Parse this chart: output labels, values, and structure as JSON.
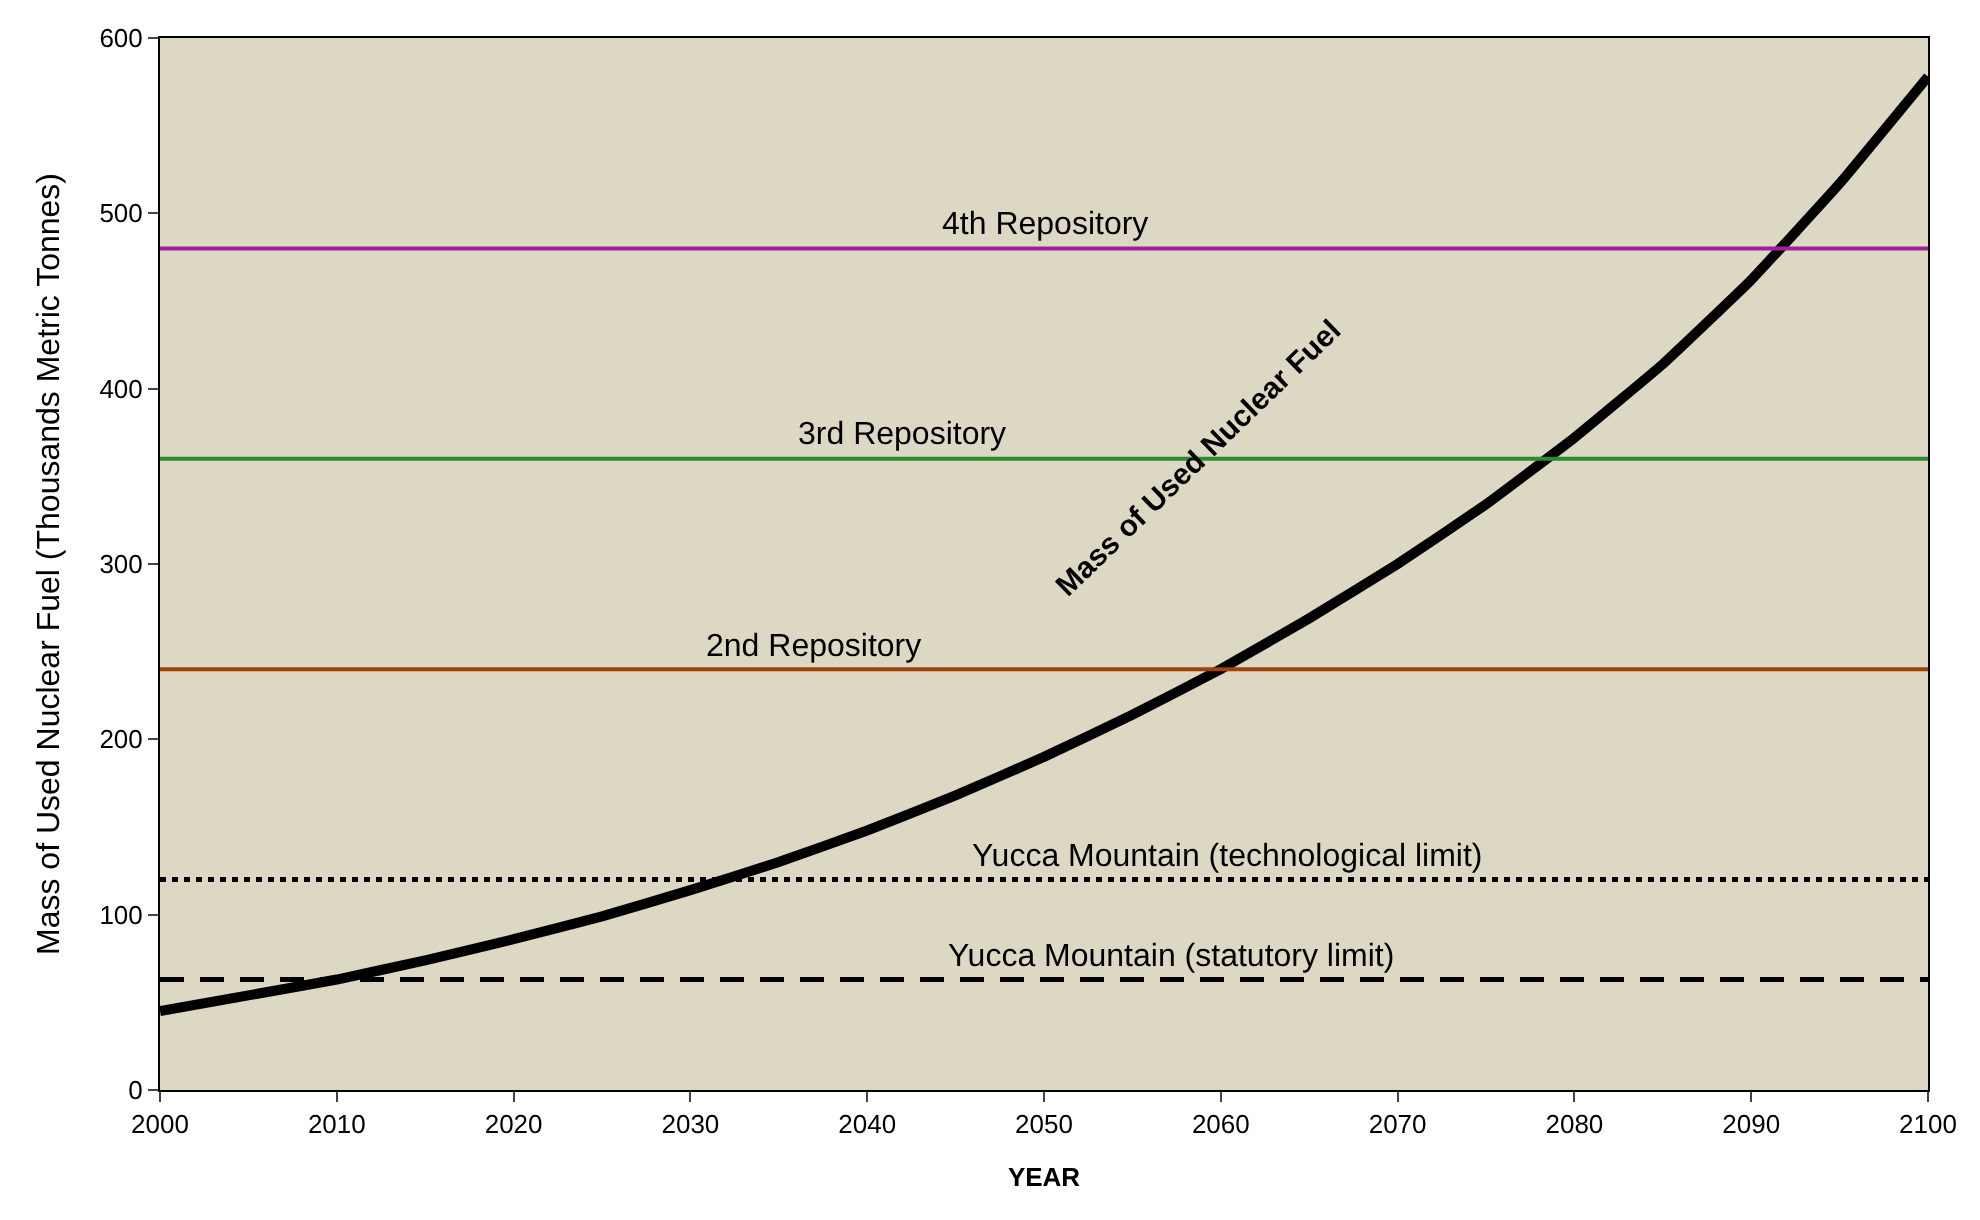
{
  "chart_data": {
    "type": "line",
    "xlabel": "YEAR",
    "ylabel": "Mass of Used Nuclear Fuel (Thousands Metric Tonnes)",
    "x": [
      2000,
      2005,
      2010,
      2015,
      2020,
      2025,
      2030,
      2035,
      2040,
      2045,
      2050,
      2055,
      2060,
      2065,
      2070,
      2075,
      2080,
      2085,
      2090,
      2095,
      2100
    ],
    "series": [
      {
        "color": "#000000",
        "values": [
          45,
          54,
          63,
          74,
          86,
          99,
          114,
          130,
          148,
          168,
          190,
          214,
          240,
          269,
          300,
          334,
          372,
          414,
          462,
          517,
          578
        ]
      }
    ],
    "xlim": [
      2000,
      2100
    ],
    "xticks": [
      2000,
      2010,
      2020,
      2030,
      2040,
      2050,
      2060,
      2070,
      2080,
      2090,
      2100
    ],
    "ylim": [
      0,
      600
    ],
    "yticks": [
      0,
      100,
      200,
      300,
      400,
      500,
      600
    ],
    "ref_lines": [
      {
        "axis": "y",
        "value": 480,
        "label": "4th Repository",
        "color": "#a020a0",
        "line_style": "solid"
      },
      {
        "axis": "y",
        "value": 360,
        "label": "3rd Repository",
        "color": "#2e8b2e",
        "line_style": "solid"
      },
      {
        "axis": "y",
        "value": 240,
        "label": "2nd Repository",
        "color": "#a0420a",
        "line_style": "solid"
      },
      {
        "axis": "y",
        "value": 120,
        "label": "Yucca Mountain (technological limit)",
        "color": "#000000",
        "line_style": "dotted"
      },
      {
        "axis": "y",
        "value": 63,
        "label": "Yucca Mountain (statutory limit)",
        "color": "#000000",
        "line_style": "dashed"
      }
    ],
    "annotations": [
      "Mass of Used Nuclear Fuel"
    ],
    "grid": false,
    "legend": false,
    "marker": "none",
    "line_style": "solid"
  }
}
